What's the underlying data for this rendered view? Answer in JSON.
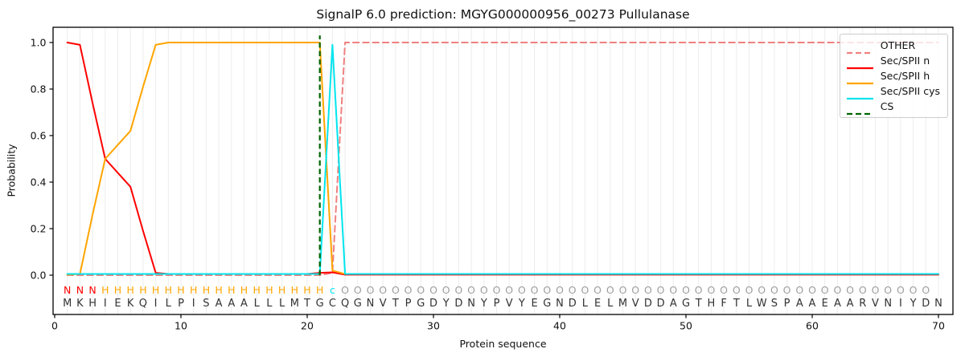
{
  "figure": {
    "title": "SignalP 6.0 prediction: MGYG000000956_00273 Pullulanase",
    "xlabel": "Protein sequence",
    "ylabel": "Probability"
  },
  "legend": {
    "position": "upper right",
    "items": [
      {
        "label": "OTHER",
        "color": "#f08080",
        "dashed": true
      },
      {
        "label": "Sec/SPII n",
        "color": "#ff0000",
        "dashed": false
      },
      {
        "label": "Sec/SPII h",
        "color": "#ffa500",
        "dashed": false
      },
      {
        "label": "Sec/SPII cys",
        "color": "#00e5ee",
        "dashed": false
      },
      {
        "label": "CS",
        "color": "#006400",
        "dashed": true
      }
    ]
  },
  "chart_data": {
    "type": "line",
    "title": "SignalP 6.0 prediction: MGYG000000956_00273 Pullulanase",
    "xlabel": "Protein sequence",
    "ylabel": "Probability",
    "xticks": [
      0,
      10,
      20,
      30,
      40,
      50,
      60,
      70
    ],
    "yticks": [
      0.0,
      0.2,
      0.4,
      0.6,
      0.8,
      1.0
    ],
    "xlim": [
      -0.15,
      71.1
    ],
    "ylim": [
      -0.17,
      1.07
    ],
    "grid": "vertical line at every residue position, light gray",
    "x_start": 1,
    "sequence": "MKHIEKQILPISAAALLLMTGCQGNVTPGDYDNYPVYEGNDLELMVDDAGTHFTLWSPAAEAARVNIYDN",
    "annotation": "NNNHHHHHHHHHHHHHHHHHHcOOOOOOOOOOOOOOOOOOOOOOOOOOOOOOOOOOOOOOOOOOOOOOO",
    "annotation_colors": {
      "N": "#ff0000",
      "H": "#ffa500",
      "c": "#00e5ee",
      "O": "#9e9e9e"
    },
    "sequence_color": "#333333",
    "cs_position": 21,
    "cs_color": "#006400",
    "grid_color": "#ececec",
    "series": [
      {
        "name": "OTHER",
        "color": "#f08080",
        "dashed": true,
        "values": [
          0,
          0,
          0,
          0,
          0,
          0,
          0,
          0,
          0,
          0,
          0,
          0,
          0,
          0,
          0,
          0,
          0,
          0,
          0,
          0,
          0,
          0.01,
          1,
          1,
          1,
          1,
          1,
          1,
          1,
          1,
          1,
          1,
          1,
          1,
          1,
          1,
          1,
          1,
          1,
          1,
          1,
          1,
          1,
          1,
          1,
          1,
          1,
          1,
          1,
          1,
          1,
          1,
          1,
          1,
          1,
          1,
          1,
          1,
          1,
          1,
          1,
          1,
          1,
          1,
          1,
          1,
          1,
          1,
          1,
          1
        ]
      },
      {
        "name": "Sec/SPII n",
        "color": "#ff0000",
        "dashed": false,
        "values": [
          1,
          0.99,
          0.74,
          0.5,
          0.44,
          0.38,
          0.19,
          0.01,
          0.005,
          0.005,
          0.005,
          0.005,
          0.005,
          0.005,
          0.005,
          0.005,
          0.005,
          0.005,
          0.005,
          0.005,
          0.01,
          0.012,
          0.002,
          0.002,
          0.002,
          0.002,
          0.002,
          0.002,
          0.002,
          0.002,
          0.002,
          0.002,
          0.002,
          0.002,
          0.002,
          0.002,
          0.002,
          0.002,
          0.002,
          0.002,
          0.002,
          0.002,
          0.002,
          0.002,
          0.002,
          0.002,
          0.002,
          0.002,
          0.002,
          0.002,
          0.002,
          0.002,
          0.002,
          0.002,
          0.002,
          0.002,
          0.002,
          0.002,
          0.002,
          0.002,
          0.002,
          0.002,
          0.002,
          0.002,
          0.002,
          0.002,
          0.002,
          0.002,
          0.002,
          0.002
        ]
      },
      {
        "name": "Sec/SPII h",
        "color": "#ffa500",
        "dashed": false,
        "values": [
          0.002,
          0.005,
          0.26,
          0.5,
          0.56,
          0.62,
          0.81,
          0.99,
          1,
          1,
          1,
          1,
          1,
          1,
          1,
          1,
          1,
          1,
          1,
          1,
          1,
          0.02,
          0.005,
          0.005,
          0.005,
          0.005,
          0.005,
          0.005,
          0.005,
          0.005,
          0.005,
          0.005,
          0.005,
          0.005,
          0.005,
          0.005,
          0.005,
          0.005,
          0.005,
          0.005,
          0.005,
          0.005,
          0.005,
          0.005,
          0.005,
          0.005,
          0.005,
          0.005,
          0.005,
          0.005,
          0.005,
          0.005,
          0.005,
          0.005,
          0.005,
          0.005,
          0.005,
          0.005,
          0.005,
          0.005,
          0.005,
          0.005,
          0.005,
          0.005,
          0.005,
          0.005,
          0.005,
          0.005,
          0.005,
          0.005
        ]
      },
      {
        "name": "Sec/SPII cys",
        "color": "#00e5ee",
        "dashed": false,
        "values": [
          0.005,
          0.005,
          0.005,
          0.005,
          0.005,
          0.005,
          0.005,
          0.005,
          0.005,
          0.005,
          0.005,
          0.005,
          0.005,
          0.005,
          0.005,
          0.005,
          0.005,
          0.005,
          0.005,
          0.005,
          0.005,
          0.99,
          0.005,
          0.005,
          0.005,
          0.005,
          0.005,
          0.005,
          0.005,
          0.005,
          0.005,
          0.005,
          0.005,
          0.005,
          0.005,
          0.005,
          0.005,
          0.005,
          0.005,
          0.005,
          0.005,
          0.005,
          0.005,
          0.005,
          0.005,
          0.005,
          0.005,
          0.005,
          0.005,
          0.005,
          0.005,
          0.005,
          0.005,
          0.005,
          0.005,
          0.005,
          0.005,
          0.005,
          0.005,
          0.005,
          0.005,
          0.005,
          0.005,
          0.005,
          0.005,
          0.005,
          0.005,
          0.005,
          0.005,
          0.005
        ]
      }
    ]
  }
}
